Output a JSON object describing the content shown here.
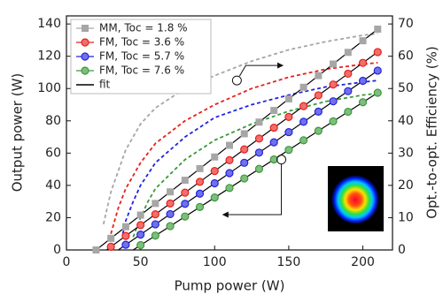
{
  "chart_data": {
    "type": "scatter",
    "xlabel": "Pump power (W)",
    "ylabel": "Output power (W)",
    "y2label": "Opt.-to-opt. Efficiency (%)",
    "xlim": [
      0,
      220
    ],
    "ylim": [
      0,
      145
    ],
    "y2lim": [
      0,
      72.5
    ],
    "xticks": [
      0,
      50,
      100,
      150,
      200
    ],
    "yticks": [
      0,
      20,
      40,
      60,
      80,
      100,
      120,
      140
    ],
    "y2ticks": [
      0,
      10,
      20,
      30,
      40,
      50,
      60,
      70
    ],
    "legend": "upper left",
    "series": [
      {
        "name": "MM, Toc = 1.8 %",
        "color": "#a6a6a6",
        "marker": "square",
        "x": [
          20,
          30,
          40,
          50,
          60,
          70,
          80,
          90,
          100,
          110,
          120,
          130,
          140,
          150,
          160,
          170,
          180,
          190,
          200,
          210
        ],
        "values": [
          0,
          7.2,
          14.4,
          21.6,
          28.8,
          36,
          43.2,
          50.4,
          57.6,
          64.8,
          72,
          79.2,
          86.4,
          93.6,
          100.8,
          108,
          115.2,
          122.4,
          129.6,
          136.8
        ]
      },
      {
        "name": "FM, Toc = 3.6 %",
        "color": "#e8201c",
        "marker": "circle",
        "x": [
          30,
          40,
          50,
          60,
          70,
          80,
          90,
          100,
          110,
          120,
          130,
          140,
          150,
          160,
          170,
          180,
          190,
          200,
          210
        ],
        "values": [
          2,
          8.7,
          15.4,
          22.1,
          28.8,
          35.5,
          42.2,
          48.9,
          55.6,
          62.3,
          69,
          75.7,
          82.4,
          89.1,
          95.8,
          102.5,
          109.2,
          115.9,
          122.6
        ]
      },
      {
        "name": "FM, Toc = 5.7 %",
        "color": "#2323e0",
        "marker": "circle",
        "x": [
          40,
          50,
          60,
          70,
          80,
          90,
          100,
          110,
          120,
          130,
          140,
          150,
          160,
          170,
          180,
          190,
          200,
          210
        ],
        "values": [
          3.2,
          9.5,
          15.9,
          22.2,
          28.6,
          34.9,
          41.3,
          47.6,
          54,
          60.3,
          66.7,
          73,
          79.4,
          85.7,
          92.1,
          98.4,
          104.8,
          111.1
        ]
      },
      {
        "name": "FM, Toc = 7.6 %",
        "color": "#3a9a3a",
        "marker": "circle",
        "x": [
          50,
          60,
          70,
          80,
          90,
          100,
          110,
          120,
          130,
          140,
          150,
          160,
          170,
          180,
          190,
          200,
          210
        ],
        "values": [
          3,
          8.9,
          14.8,
          20.7,
          26.6,
          32.5,
          38.4,
          44.3,
          50.2,
          56.1,
          62,
          67.9,
          73.8,
          79.7,
          85.6,
          91.5,
          97.4
        ]
      }
    ],
    "fit": {
      "name": "fit",
      "color": "#000000",
      "lines": [
        {
          "x": [
            20,
            210
          ],
          "values": [
            0,
            136.8
          ]
        },
        {
          "x": [
            27,
            210
          ],
          "values": [
            0,
            122.6
          ]
        },
        {
          "x": [
            35,
            210
          ],
          "values": [
            0,
            111.1
          ]
        },
        {
          "x": [
            45,
            210
          ],
          "values": [
            0,
            97.4
          ]
        }
      ]
    },
    "efficiency": [
      {
        "color": "#a6a6a6",
        "axis": "y2",
        "x": [
          25,
          30,
          40,
          50,
          60,
          80,
          100,
          125,
          150,
          175,
          200,
          210
        ],
        "values": [
          8,
          18,
          31,
          39,
          44,
          50,
          54,
          58.5,
          62,
          64.5,
          66.5,
          67
        ]
      },
      {
        "color": "#e8201c",
        "axis": "y2",
        "x": [
          30,
          35,
          40,
          50,
          60,
          80,
          100,
          125,
          150,
          175,
          200,
          210
        ],
        "values": [
          5,
          13,
          19,
          27,
          33,
          40,
          45,
          50,
          53.5,
          56,
          57.5,
          58
        ]
      },
      {
        "color": "#2323e0",
        "axis": "y2",
        "x": [
          38,
          40,
          45,
          50,
          60,
          80,
          100,
          125,
          150,
          175,
          200,
          210
        ],
        "values": [
          5,
          9,
          15,
          20,
          27,
          35,
          41,
          45,
          48,
          50.5,
          52,
          52.5
        ]
      },
      {
        "color": "#3a9a3a",
        "axis": "y2",
        "x": [
          45,
          50,
          55,
          60,
          80,
          100,
          125,
          150,
          175,
          200,
          210
        ],
        "values": [
          4,
          10,
          15,
          19,
          28,
          34,
          39,
          43,
          46,
          48,
          48.5
        ]
      }
    ]
  }
}
